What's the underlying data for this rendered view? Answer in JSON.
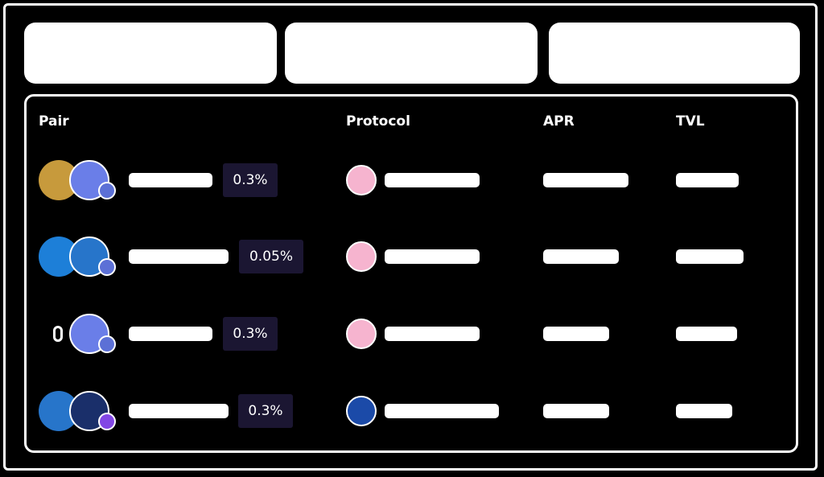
{
  "table": {
    "headers": [
      "Pair",
      "Protocol",
      "APR",
      "TVL"
    ],
    "rows": [
      {
        "fee": "0.3%"
      },
      {
        "fee": "0.05%"
      },
      {
        "fee": "0.3%"
      },
      {
        "fee": "0.3%"
      }
    ]
  }
}
